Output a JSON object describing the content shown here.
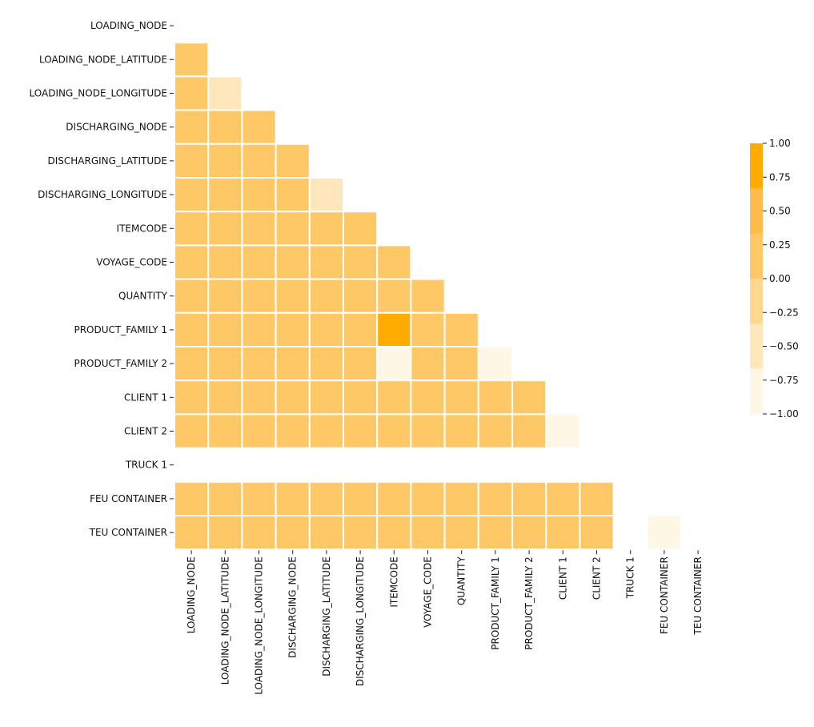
{
  "chart_data": {
    "type": "heatmap",
    "variables": [
      "LOADING_NODE",
      "LOADING_NODE_LATITUDE",
      "LOADING_NODE_LONGITUDE",
      "DISCHARGING_NODE",
      "DISCHARGING_LATITUDE",
      "DISCHARGING_LONGITUDE",
      "ITEMCODE",
      "VOYAGE_CODE",
      "QUANTITY",
      "PRODUCT_FAMILY 1",
      "PRODUCT_FAMILY 2",
      "CLIENT 1",
      "CLIENT 2",
      "TRUCK 1",
      "FEU CONTAINER",
      "TEU CONTAINER"
    ],
    "mask": "upper-triangle-and-diagonal",
    "values": [
      [
        null,
        null,
        null,
        null,
        null,
        null,
        null,
        null,
        null,
        null,
        null,
        null,
        null,
        null,
        null
      ],
      [
        0.0
      ],
      [
        0.3,
        -0.5
      ],
      [
        0.3,
        0.3,
        0.3
      ],
      [
        0.0,
        0.0,
        0.0,
        0.0
      ],
      [
        0.0,
        0.3,
        0.0,
        0.3,
        -0.6
      ],
      [
        0.3,
        0.3,
        0.0,
        0.0,
        0.0,
        0.0
      ],
      [
        0.3,
        0.0,
        0.2,
        0.0,
        0.2,
        0.0,
        0.0
      ],
      [
        0.3,
        0.3,
        0.0,
        0.2,
        0.0,
        0.2,
        0.0,
        0.0
      ],
      [
        0.3,
        0.3,
        0.0,
        0.0,
        0.0,
        0.0,
        1.0,
        0.0,
        0.0
      ],
      [
        0.0,
        0.0,
        0.3,
        0.3,
        0.3,
        0.3,
        -0.9,
        0.3,
        0.3,
        -0.9
      ],
      [
        0.0,
        0.3,
        0.0,
        0.0,
        0.0,
        0.0,
        0.3,
        0.0,
        0.0,
        0.3,
        0.0
      ],
      [
        0.3,
        0.0,
        0.3,
        0.3,
        0.3,
        0.3,
        0.0,
        0.3,
        0.3,
        0.0,
        0.3,
        -0.9
      ],
      [
        null,
        null,
        null,
        null,
        null,
        null,
        null,
        null,
        null,
        null,
        null,
        null,
        null
      ],
      [
        0.3,
        0.3,
        0.3,
        0.3,
        0.3,
        0.3,
        0.0,
        0.3,
        0.3,
        0.0,
        0.3,
        0.3,
        0.0,
        null
      ],
      [
        0.0,
        0.0,
        0.0,
        0.0,
        0.0,
        0.0,
        0.3,
        0.0,
        0.0,
        0.3,
        0.0,
        0.0,
        0.3,
        null,
        -0.9
      ]
    ],
    "colorbar": {
      "min": -1.0,
      "max": 1.0,
      "ticks": [
        "1.00",
        "0.75",
        "0.50",
        "0.25",
        "0.00",
        "−0.25",
        "−0.50",
        "−0.75",
        "−1.00"
      ],
      "bands": [
        "#fff7e6",
        "#ffe7bb",
        "#ffd78f",
        "#ffc867",
        "#ffbc4b",
        "#ffab00"
      ]
    }
  }
}
